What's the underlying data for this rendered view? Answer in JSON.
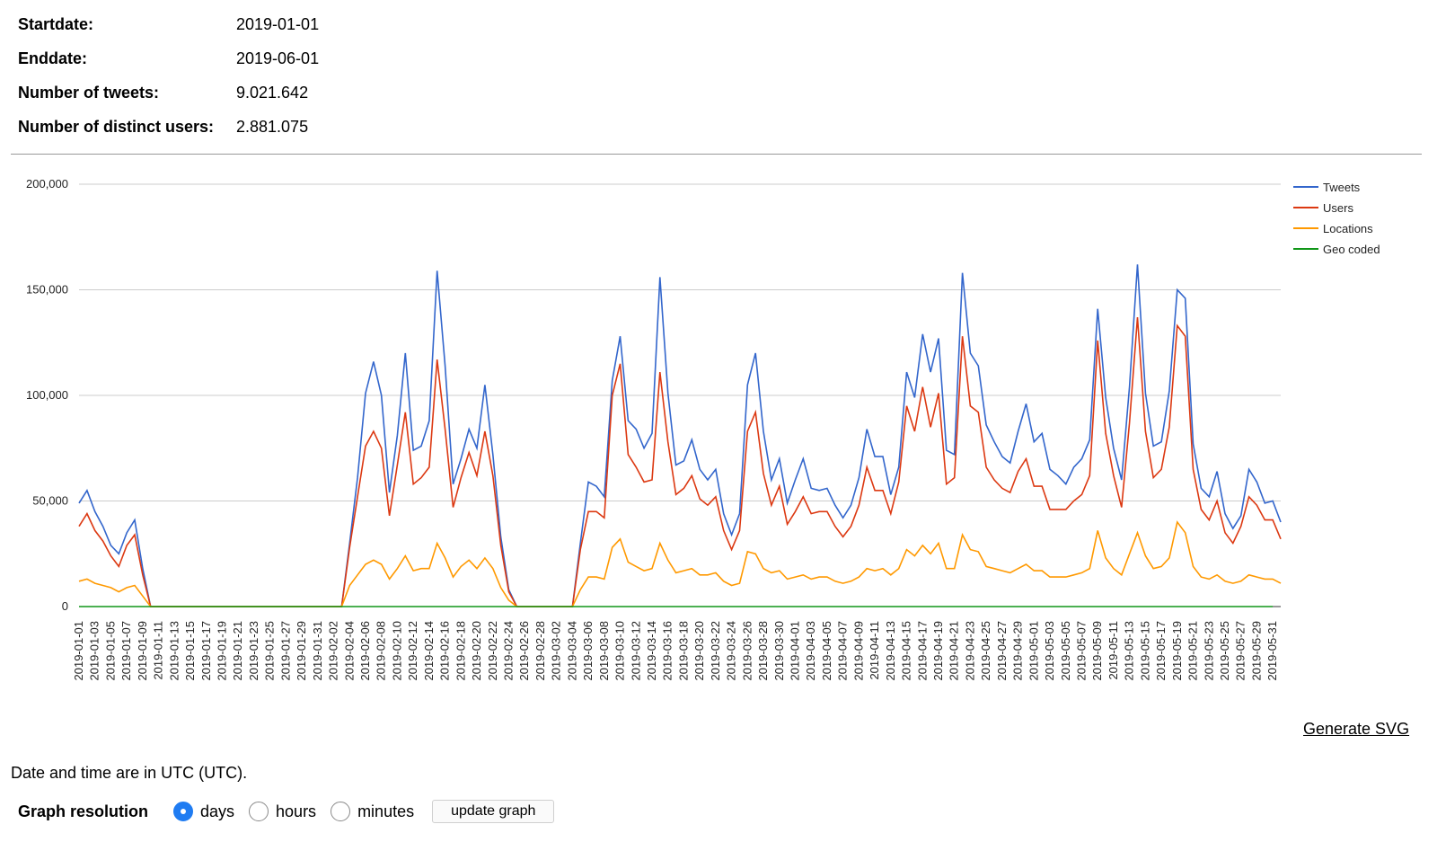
{
  "stats": {
    "startdate_label": "Startdate:",
    "startdate_value": "2019-01-01",
    "enddate_label": "Enddate:",
    "enddate_value": "2019-06-01",
    "tweets_label": "Number of tweets:",
    "tweets_value": "9.021.642",
    "users_label": "Number of distinct users:",
    "users_value": "2.881.075"
  },
  "actions": {
    "generate_svg": "Generate SVG"
  },
  "footer": {
    "timezone_note": "Date and time are in UTC (UTC).",
    "resolution_label": "Graph resolution",
    "options": [
      "days",
      "hours",
      "minutes"
    ],
    "selected": "days",
    "update_button": "update graph"
  },
  "chart_data": {
    "type": "line",
    "title": "",
    "xlabel": "",
    "ylabel": "",
    "ylim": [
      0,
      200000
    ],
    "yticks": [
      0,
      50000,
      100000,
      150000,
      200000
    ],
    "ytick_labels": [
      "0",
      "50,000",
      "100,000",
      "150,000",
      "200,000"
    ],
    "grid": true,
    "legend_position": "right",
    "x_range": [
      "2019-01-01",
      "2019-05-31"
    ],
    "x_tick_step_days": 2,
    "series": [
      {
        "name": "Tweets",
        "color": "#3366cc",
        "values": [
          49000,
          55000,
          45000,
          38000,
          29000,
          25000,
          35000,
          41000,
          18000,
          0,
          0,
          0,
          0,
          0,
          0,
          0,
          0,
          0,
          0,
          0,
          0,
          0,
          0,
          0,
          0,
          0,
          0,
          0,
          0,
          0,
          0,
          0,
          0,
          0,
          30000,
          61000,
          101000,
          116000,
          100000,
          54000,
          81000,
          120000,
          74000,
          76000,
          88000,
          159000,
          114000,
          58000,
          70000,
          84000,
          75000,
          105000,
          72000,
          33000,
          8000,
          0,
          0,
          0,
          0,
          0,
          0,
          0,
          0,
          30000,
          59000,
          57000,
          52000,
          107000,
          128000,
          88000,
          84000,
          75000,
          82000,
          156000,
          101000,
          67000,
          69000,
          79000,
          65000,
          60000,
          65000,
          44000,
          34000,
          44000,
          105000,
          120000,
          83000,
          60000,
          70000,
          49000,
          60000,
          70000,
          56000,
          55000,
          56000,
          48000,
          42000,
          48000,
          61000,
          84000,
          71000,
          71000,
          53000,
          66000,
          111000,
          99000,
          129000,
          111000,
          127000,
          74000,
          72000,
          158000,
          120000,
          114000,
          86000,
          78000,
          71000,
          68000,
          83000,
          96000,
          78000,
          82000,
          65000,
          62000,
          58000,
          66000,
          70000,
          79000,
          141000,
          99000,
          75000,
          60000,
          104000,
          162000,
          101000,
          76000,
          78000,
          102000,
          150000,
          146000,
          77000,
          56000,
          52000,
          64000,
          44000,
          37000,
          43000,
          65000,
          59000,
          49000,
          50000,
          40000
        ]
      },
      {
        "name": "Users",
        "color": "#dc3912",
        "values": [
          38000,
          44000,
          36000,
          31000,
          24000,
          19000,
          29000,
          34000,
          15000,
          0,
          0,
          0,
          0,
          0,
          0,
          0,
          0,
          0,
          0,
          0,
          0,
          0,
          0,
          0,
          0,
          0,
          0,
          0,
          0,
          0,
          0,
          0,
          0,
          0,
          28000,
          52000,
          76000,
          83000,
          75000,
          43000,
          67000,
          92000,
          58000,
          61000,
          66000,
          117000,
          84000,
          47000,
          61000,
          73000,
          62000,
          83000,
          62000,
          29000,
          7000,
          0,
          0,
          0,
          0,
          0,
          0,
          0,
          0,
          27000,
          45000,
          45000,
          42000,
          100000,
          115000,
          72000,
          66000,
          59000,
          60000,
          111000,
          78000,
          53000,
          56000,
          62000,
          51000,
          48000,
          52000,
          36000,
          27000,
          36000,
          83000,
          92000,
          63000,
          48000,
          57000,
          39000,
          45000,
          52000,
          44000,
          45000,
          45000,
          38000,
          33000,
          38000,
          48000,
          66000,
          55000,
          55000,
          44000,
          59000,
          95000,
          83000,
          104000,
          85000,
          101000,
          58000,
          61000,
          128000,
          95000,
          92000,
          66000,
          60000,
          56000,
          54000,
          64000,
          70000,
          57000,
          57000,
          46000,
          46000,
          46000,
          50000,
          53000,
          62000,
          126000,
          82000,
          62000,
          47000,
          87000,
          137000,
          83000,
          61000,
          65000,
          85000,
          133000,
          128000,
          65000,
          46000,
          41000,
          50000,
          35000,
          30000,
          38000,
          52000,
          48000,
          41000,
          41000,
          32000
        ]
      },
      {
        "name": "Locations",
        "color": "#ff9900",
        "values": [
          12000,
          13000,
          11000,
          10000,
          9000,
          7000,
          9000,
          10000,
          5000,
          0,
          0,
          0,
          0,
          0,
          0,
          0,
          0,
          0,
          0,
          0,
          0,
          0,
          0,
          0,
          0,
          0,
          0,
          0,
          0,
          0,
          0,
          0,
          0,
          0,
          10000,
          15000,
          20000,
          22000,
          20000,
          13000,
          18000,
          24000,
          17000,
          18000,
          18000,
          30000,
          23000,
          14000,
          19000,
          22000,
          18000,
          23000,
          18000,
          9000,
          3000,
          0,
          0,
          0,
          0,
          0,
          0,
          0,
          0,
          8000,
          14000,
          14000,
          13000,
          28000,
          32000,
          21000,
          19000,
          17000,
          18000,
          30000,
          22000,
          16000,
          17000,
          18000,
          15000,
          15000,
          16000,
          12000,
          10000,
          11000,
          26000,
          25000,
          18000,
          16000,
          17000,
          13000,
          14000,
          15000,
          13000,
          14000,
          14000,
          12000,
          11000,
          12000,
          14000,
          18000,
          17000,
          18000,
          15000,
          18000,
          27000,
          24000,
          29000,
          25000,
          30000,
          18000,
          18000,
          34000,
          27000,
          26000,
          19000,
          18000,
          17000,
          16000,
          18000,
          20000,
          17000,
          17000,
          14000,
          14000,
          14000,
          15000,
          16000,
          18000,
          36000,
          23000,
          18000,
          15000,
          25000,
          35000,
          24000,
          18000,
          19000,
          23000,
          40000,
          35000,
          19000,
          14000,
          13000,
          15000,
          12000,
          11000,
          12000,
          15000,
          14000,
          13000,
          13000,
          11000
        ]
      },
      {
        "name": "Geo coded",
        "color": "#109618",
        "values": [
          0,
          0,
          0,
          0,
          0,
          0,
          0,
          0,
          0,
          0,
          0,
          0,
          0,
          0,
          0,
          0,
          0,
          0,
          0,
          0,
          0,
          0,
          0,
          0,
          0,
          0,
          0,
          0,
          0,
          0,
          0,
          0,
          0,
          0,
          0,
          0,
          0,
          0,
          0,
          0,
          0,
          0,
          0,
          0,
          0,
          0,
          0,
          0,
          0,
          0,
          0,
          0,
          0,
          0,
          0,
          0,
          0,
          0,
          0,
          0,
          0,
          0,
          0,
          0,
          0,
          0,
          0,
          0,
          0,
          0,
          0,
          0,
          0,
          0,
          0,
          0,
          0,
          0,
          0,
          0,
          0,
          0,
          0,
          0,
          0,
          0,
          0,
          0,
          0,
          0,
          0,
          0,
          0,
          0,
          0,
          0,
          0,
          0,
          0,
          0,
          0,
          0,
          0,
          0,
          0,
          0,
          0,
          0,
          0,
          0,
          0,
          0,
          0,
          0,
          0,
          0,
          0,
          0,
          0,
          0,
          0,
          0,
          0,
          0,
          0,
          0,
          0,
          0,
          0,
          0,
          0,
          0,
          0,
          0,
          0,
          0,
          0,
          0,
          0,
          0,
          0,
          0,
          0,
          0,
          0,
          0,
          0,
          0,
          0,
          0,
          0
        ]
      }
    ]
  }
}
